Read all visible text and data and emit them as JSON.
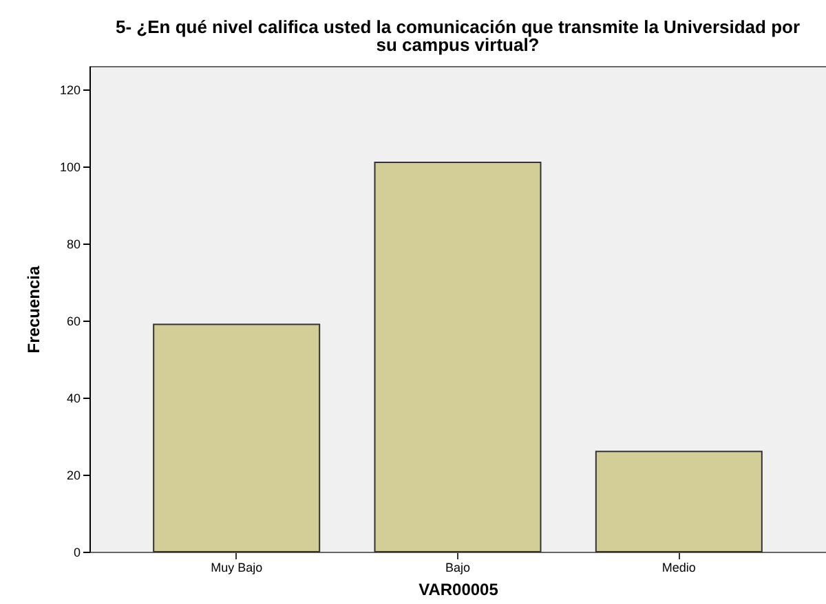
{
  "chart_data": {
    "type": "bar",
    "title": "5- ¿En qué nivel califica usted la comunicación que transmite la Universidad por su campus virtual?",
    "xlabel": "VAR00005",
    "ylabel": "Frecuencia",
    "categories": [
      "Muy Bajo",
      "Bajo",
      "Medio"
    ],
    "values": [
      59,
      101,
      26
    ],
    "color": "#d3ce97",
    "ylim": [
      0,
      126
    ],
    "yticks": [
      0,
      20,
      40,
      60,
      80,
      100,
      120
    ],
    "grid": false
  }
}
